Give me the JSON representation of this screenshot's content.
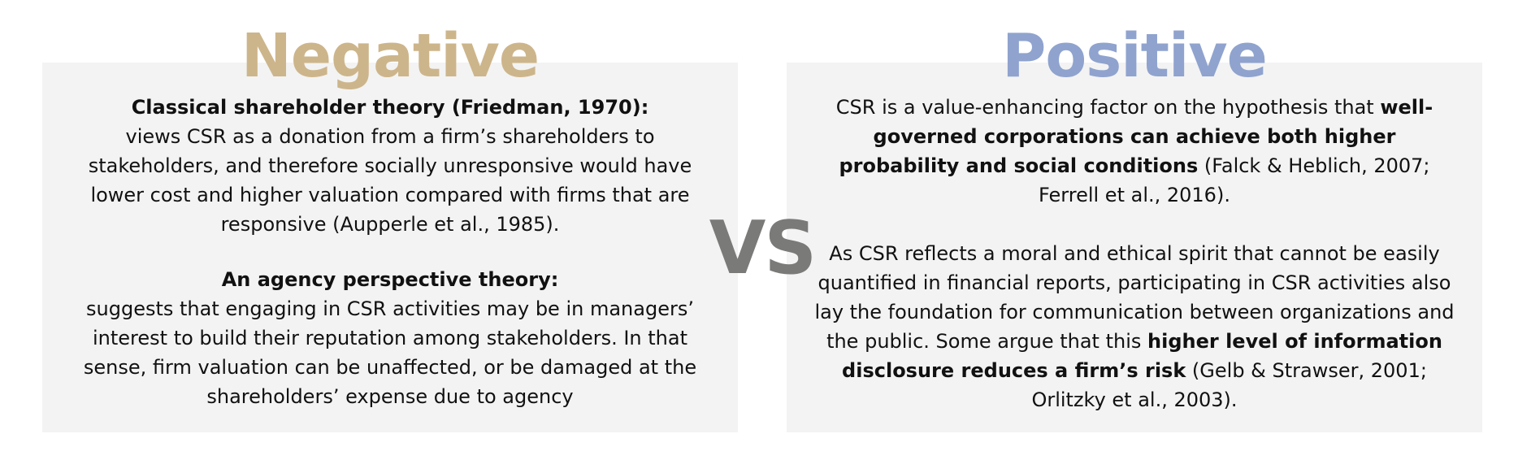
{
  "negative": {
    "heading": "Negative",
    "section1": {
      "title": "Classical shareholder theory (Friedman, 1970):",
      "body": "views CSR as a donation from a firm’s shareholders to stakeholders, and therefore socially unresponsive would have lower cost and higher valuation compared with firms that are responsive (Aupperle et al., 1985)."
    },
    "section2": {
      "title": "An agency perspective theory:",
      "body": "suggests that engaging in CSR activities may be in managers’ interest to build their reputation among stakeholders. In that sense, firm valuation can be unaffected, or be damaged at the shareholders’ expense due to agency"
    }
  },
  "vs_label": "VS",
  "positive": {
    "heading": "Positive",
    "paragraph1": {
      "part1": "CSR is a value-enhancing factor on the hypothesis that ",
      "bold": "well-governed corporations can achieve both higher probability and social conditions",
      "part2": " (Falck & Heblich, 2007; Ferrell et al., 2016)."
    },
    "paragraph2": {
      "part1": "As CSR reflects a moral and ethical spirit that cannot be easily quantified in financial reports, participating in CSR activities also lay the foundation for communication between organizations and the public. Some argue that this ",
      "bold": "higher level of information disclosure reduces a firm’s risk",
      "part2": " (Gelb & Strawser, 2001; Orlitzky et al., 2003)."
    }
  },
  "colors": {
    "negative_heading": "#cdb58b",
    "positive_heading": "#8fa3ce",
    "vs": "#7a7a78",
    "panel_background": "#f3f3f3"
  }
}
